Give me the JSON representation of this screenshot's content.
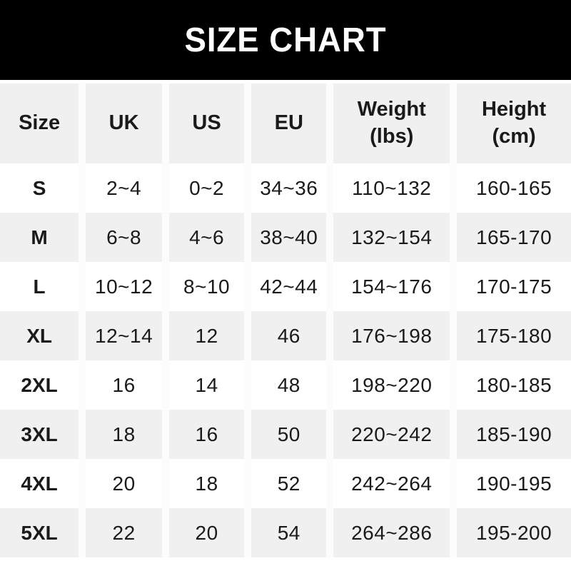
{
  "banner": {
    "title": "SIZE CHART"
  },
  "header": {
    "cells": [
      {
        "line1": "Size",
        "line2": ""
      },
      {
        "line1": "UK",
        "line2": ""
      },
      {
        "line1": "US",
        "line2": ""
      },
      {
        "line1": "EU",
        "line2": ""
      },
      {
        "line1": "Weight",
        "line2": "(lbs)"
      },
      {
        "line1": "Height",
        "line2": "(cm)"
      }
    ]
  },
  "chart_data": {
    "type": "table",
    "title": "SIZE CHART",
    "columns": [
      "Size",
      "UK",
      "US",
      "EU",
      "Weight (lbs)",
      "Height (cm)"
    ],
    "rows": [
      [
        "S",
        "2~4",
        "0~2",
        "34~36",
        "110~132",
        "160-165"
      ],
      [
        "M",
        "6~8",
        "4~6",
        "38~40",
        "132~154",
        "165-170"
      ],
      [
        "L",
        "10~12",
        "8~10",
        "42~44",
        "154~176",
        "170-175"
      ],
      [
        "XL",
        "12~14",
        "12",
        "46",
        "176~198",
        "175-180"
      ],
      [
        "2XL",
        "16",
        "14",
        "48",
        "198~220",
        "180-185"
      ],
      [
        "3XL",
        "18",
        "16",
        "50",
        "220~242",
        "185-190"
      ],
      [
        "4XL",
        "20",
        "18",
        "52",
        "242~264",
        "190-195"
      ],
      [
        "5XL",
        "22",
        "20",
        "54",
        "264~286",
        "195-200"
      ]
    ],
    "layout": {
      "striped_rows": true,
      "stripe_pattern": "even rows gray, odd rows white",
      "header_background": "gray"
    }
  },
  "colors": {
    "banner_bg": "#000000",
    "banner_text": "#ffffff",
    "row_alt_bg": "#f0f0f1",
    "row_bg": "#ffffff",
    "column_separator": "#fcfcfc",
    "text": "#1a1a1a"
  }
}
